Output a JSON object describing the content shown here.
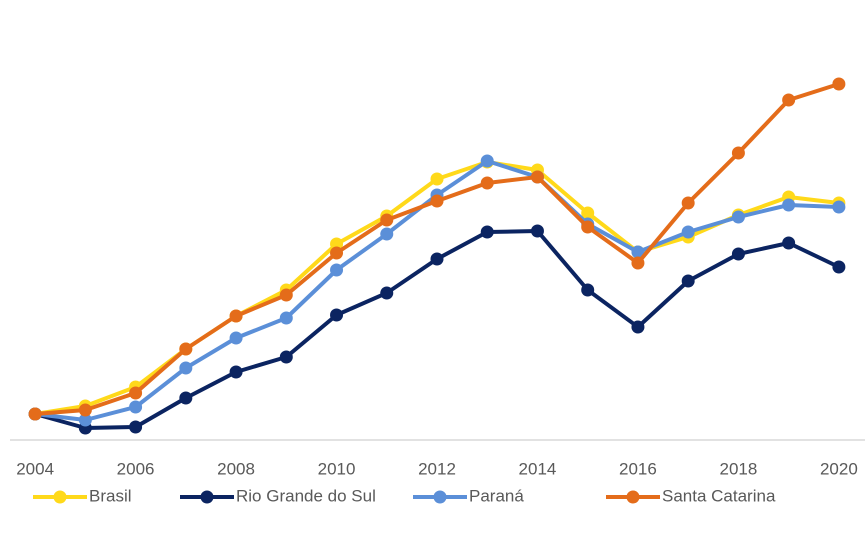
{
  "chart_data": {
    "type": "line",
    "x": [
      2004,
      2005,
      2006,
      2007,
      2008,
      2009,
      2010,
      2011,
      2012,
      2013,
      2014,
      2015,
      2016,
      2017,
      2018,
      2019,
      2020
    ],
    "xlim": [
      2003.5,
      2020.5
    ],
    "xticks": [
      2004,
      2006,
      2008,
      2010,
      2012,
      2014,
      2016,
      2018,
      2020
    ],
    "ylim": [
      87,
      297
    ],
    "legend": "bottom",
    "series": [
      {
        "name": "Brasil",
        "color": "#ffd91a",
        "values": [
          100,
          104,
          113.5,
          132.5,
          149,
          162,
          185,
          199,
          217.5,
          226,
          222,
          200.5,
          181,
          188.5,
          199.5,
          208.5,
          205.5
        ]
      },
      {
        "name": "Rio Grande do Sul",
        "color": "#0b2461",
        "values": [
          100,
          93,
          93.5,
          108,
          121,
          128.5,
          149.5,
          160.5,
          177.5,
          191,
          191.5,
          162,
          143.5,
          166.5,
          180,
          185.5,
          173.5
        ]
      },
      {
        "name": "Paraná",
        "color": "#5b8fd8",
        "values": [
          100,
          97,
          103.5,
          123,
          138,
          148,
          172,
          190,
          209.5,
          226.5,
          218.5,
          195,
          181,
          191,
          198.5,
          204.5,
          203.5
        ]
      },
      {
        "name": "Santa Catarina",
        "color": "#e46c1a",
        "values": [
          100,
          102,
          110.5,
          132.5,
          149,
          159.5,
          180.5,
          197,
          206.5,
          215.5,
          218.5,
          193.5,
          175.5,
          205.5,
          230.5,
          257,
          265
        ]
      }
    ]
  }
}
